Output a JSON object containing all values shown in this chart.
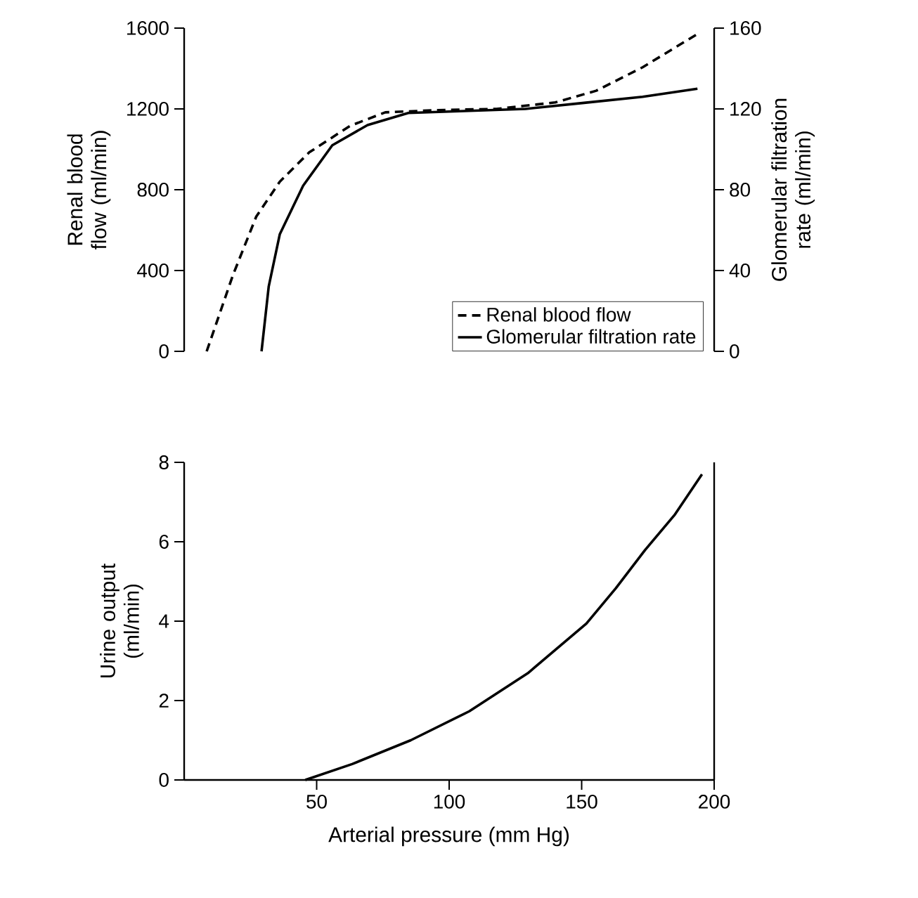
{
  "chart_data": [
    {
      "type": "line",
      "xlim": [
        0,
        200
      ],
      "ylim": [
        0,
        1600
      ],
      "yticks": [
        0,
        400,
        800,
        1200,
        1600
      ],
      "y2lim": [
        0,
        160
      ],
      "y2ticks": [
        0,
        40,
        80,
        120,
        160
      ],
      "ylabel": "Renal blood flow (ml/min)",
      "y2label": "Glomerular filtration rate (ml/min)",
      "tick_labels": "y",
      "legend": "bottom right",
      "grid": false,
      "series": [
        {
          "name": "Renal blood flow",
          "color": "#000000",
          "line_style": "dashed",
          "x": [
            8.5,
            18.4,
            27.2,
            36.1,
            47.2,
            62.6,
            75.9,
            95.8,
            117.9,
            140,
            155.5,
            173,
            193.7
          ],
          "values": [
            0,
            377,
            667,
            840,
            985,
            1116,
            1183,
            1194,
            1200,
            1232,
            1290,
            1406,
            1571
          ]
        },
        {
          "name": "Glomerular filtration rate",
          "color": "#000000",
          "line_style": "solid",
          "axis": "y2",
          "x": [
            29.2,
            31.9,
            36.1,
            44.9,
            55.9,
            69.2,
            84.6,
            106.7,
            128.8,
            150.9,
            173,
            193.7
          ],
          "values": [
            0,
            32,
            58,
            82,
            102,
            112,
            118,
            119,
            120,
            123,
            126,
            130
          ]
        }
      ]
    },
    {
      "type": "line",
      "xlim": [
        0,
        200
      ],
      "xticks": [
        50,
        100,
        150,
        200
      ],
      "ylim": [
        0,
        8
      ],
      "yticks": [
        0,
        2,
        4,
        6,
        8
      ],
      "xlabel": "Arterial pressure (mm Hg)",
      "ylabel": "Urine output (ml/min)",
      "grid": false,
      "series": [
        {
          "color": "#000000",
          "line_style": "solid",
          "x": [
            45.7,
            63.4,
            85.5,
            107.6,
            129.7,
            151.8,
            162.9,
            173.9,
            185,
            195.4
          ],
          "values": [
            0,
            0.4,
            1.0,
            1.73,
            2.69,
            3.94,
            4.83,
            5.79,
            6.67,
            7.7
          ]
        }
      ]
    }
  ]
}
